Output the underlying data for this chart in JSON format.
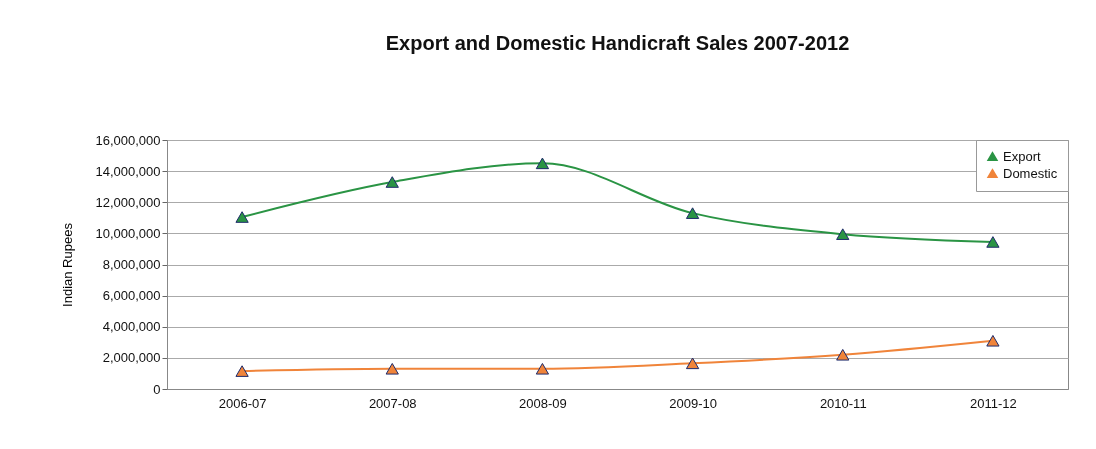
{
  "chart_data": {
    "type": "line",
    "title": "Export and Domestic Handicraft Sales 2007-2012",
    "ylabel": "Indian Rupees",
    "categories": [
      "2006-07",
      "2007-08",
      "2008-09",
      "2009-10",
      "2010-11",
      "2011-12"
    ],
    "series": [
      {
        "name": "Export",
        "color": "#2a9444",
        "values": [
          11050000,
          13300000,
          14500000,
          11300000,
          9950000,
          9450000
        ]
      },
      {
        "name": "Domestic",
        "color": "#f0843a",
        "values": [
          1150000,
          1300000,
          1300000,
          1650000,
          2200000,
          3100000
        ]
      }
    ],
    "ylim": [
      0,
      16000000
    ],
    "yticks": [
      0,
      {
        "value": 2000000,
        "label": "2,000,000"
      },
      {
        "value": 4000000,
        "label": "4,000,000"
      },
      {
        "value": 6000000,
        "label": "6,000,000"
      },
      {
        "value": 8000000,
        "label": "8,000,000"
      },
      {
        "value": 10000000,
        "label": "10,000,000"
      },
      {
        "value": 12000000,
        "label": "12,000,000"
      },
      {
        "value": 14000000,
        "label": "14,000,000"
      },
      {
        "value": 16000000,
        "label": "16,000,000"
      }
    ],
    "grid": "y",
    "legend": "top right",
    "marker": "triangle",
    "line_style": "solid"
  }
}
